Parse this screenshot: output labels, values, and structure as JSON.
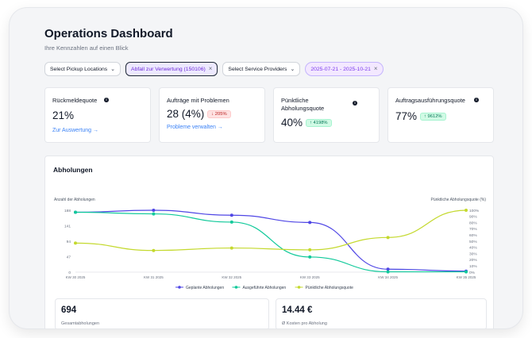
{
  "header": {
    "title": "Operations Dashboard",
    "subtitle": "Ihre Kennzahlen auf einen Blick"
  },
  "filters": {
    "pickup": "Select Pickup Locations",
    "waste_type": "Abfall zur Verwertung (150106)",
    "providers": "Select Service Providers",
    "date_range": "2025-07-21 - 2025-10-21"
  },
  "kpis": [
    {
      "label": "Rückmeldequote",
      "value": "21%",
      "link": "Zur Auswertung"
    },
    {
      "label": "Aufträge mit Problemen",
      "value": "28 (4%)",
      "badge": "↓ 205%",
      "link": "Probleme verwalten"
    },
    {
      "label": "Pünktliche Abholungsquote",
      "value": "40%",
      "badge": "↑ 4198%"
    },
    {
      "label": "Auftragsausführungsquote",
      "value": "77%",
      "badge": "↑ 9612%"
    }
  ],
  "chart_section": {
    "title": "Abholungen"
  },
  "chart_data": {
    "type": "line",
    "ylabel": "Anzahl der Abholungen",
    "y2label": "Pünktliche Abholungsquote (%)",
    "categories": [
      "KW 30 2025",
      "KW 31 2025",
      "KW 32 2025",
      "KW 33 2025",
      "KW 34 2025",
      "KW 35 2025"
    ],
    "y_ticks": [
      "0",
      "47",
      "94",
      "141",
      "188"
    ],
    "y2_ticks": [
      "0%",
      "10%",
      "20%",
      "30%",
      "40%",
      "50%",
      "60%",
      "70%",
      "80%",
      "90%",
      "100%"
    ],
    "ylim": [
      0,
      188
    ],
    "y2lim": [
      0,
      100
    ],
    "series": [
      {
        "name": "Geplante Abholungen",
        "axis": "left",
        "color": "#4f46e5",
        "values": [
          182,
          188,
          173,
          151,
          9,
          3
        ]
      },
      {
        "name": "Ausgeführte Abholungen",
        "axis": "left",
        "color": "#10c99a",
        "values": [
          182,
          177,
          152,
          46,
          1,
          1
        ]
      },
      {
        "name": "Pünktliche Abholungsquote",
        "axis": "right",
        "color": "#c4d92e",
        "values": [
          47,
          35,
          39,
          36,
          56,
          100
        ]
      }
    ]
  },
  "stats": [
    {
      "value": "694",
      "label": "Gesamtabholungen"
    },
    {
      "value": "14.44 €",
      "label": "Ø Kosten pro Abholung"
    }
  ]
}
